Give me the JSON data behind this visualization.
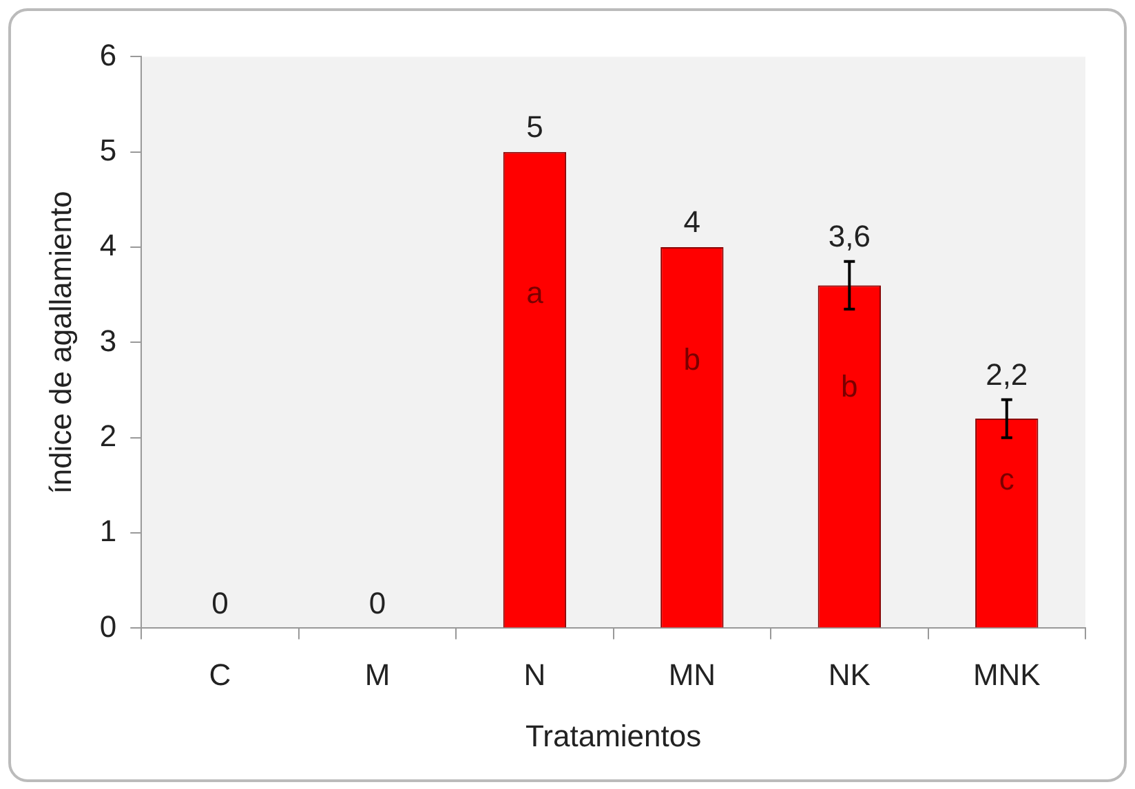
{
  "chart_data": {
    "type": "bar",
    "xlabel": "Tratamientos",
    "ylabel": "índice de agallamiento",
    "categories": [
      "C",
      "M",
      "N",
      "MN",
      "NK",
      "MNK"
    ],
    "values": [
      0,
      0,
      5,
      4,
      3.6,
      2.2
    ],
    "value_labels": [
      "0",
      "0",
      "5",
      "4",
      "3,6",
      "2,2"
    ],
    "errors": [
      null,
      null,
      null,
      null,
      0.25,
      0.2
    ],
    "color": "#ff0000",
    "ylim": [
      0,
      6
    ],
    "yticks": [
      0,
      1,
      2,
      3,
      4,
      5,
      6
    ],
    "grid": false,
    "legend": false,
    "annotations": [
      "a",
      "b",
      "b",
      "c"
    ]
  }
}
